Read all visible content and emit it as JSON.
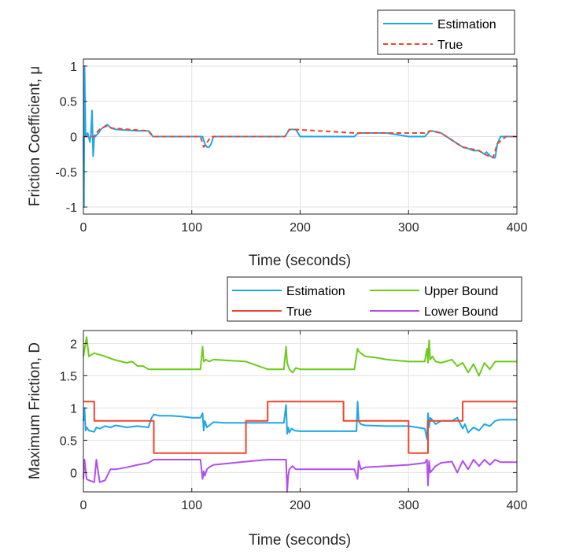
{
  "colors": {
    "estimation": "#1ea6ec",
    "true": "#f0452a",
    "upper": "#6ccb1a",
    "lower": "#b14ef0"
  },
  "chart_data": [
    {
      "type": "line",
      "xlabel": "Time (seconds)",
      "ylabel": "Friction Coefficient, μ",
      "xlim": [
        0,
        400
      ],
      "ylim": [
        -1.1,
        1.1
      ],
      "xticks": [
        "0",
        "100",
        "200",
        "300",
        "400"
      ],
      "yticks": [
        "1",
        "0.5",
        "0",
        "-0.5",
        "-1"
      ],
      "legend": {
        "position": "top-right",
        "entries": [
          "Estimation",
          "True"
        ]
      },
      "grid": true,
      "series": [
        {
          "name": "Estimation",
          "style": "solid",
          "x": [
            0,
            0.5,
            1,
            2,
            4,
            6,
            7,
            8,
            9,
            10,
            10.5,
            11,
            12,
            14,
            16,
            20,
            22,
            24,
            26,
            30,
            40,
            50,
            60,
            62,
            64,
            66,
            70,
            80,
            100,
            110,
            112,
            114,
            116,
            118,
            120,
            140,
            160,
            180,
            186,
            188,
            190,
            192,
            196,
            200,
            220,
            240,
            250,
            252,
            254,
            260,
            280,
            300,
            310,
            315,
            318,
            320,
            325,
            330,
            335,
            340,
            345,
            350,
            355,
            360,
            365,
            370,
            372,
            375,
            378,
            380,
            382,
            385,
            390,
            400
          ],
          "values": [
            0,
            -1,
            1,
            0,
            0.05,
            -0.08,
            0.05,
            0.37,
            -0.28,
            0,
            0.02,
            0,
            0.02,
            0.05,
            0.1,
            0.15,
            0.17,
            0.14,
            0.12,
            0.1,
            0.09,
            0.08,
            0.08,
            0.05,
            0,
            0,
            0,
            0,
            0,
            0,
            -0.1,
            -0.15,
            -0.15,
            -0.1,
            0,
            0,
            0,
            0,
            0,
            0.05,
            0.1,
            0.1,
            0.1,
            0,
            0,
            0,
            0,
            0.03,
            0.05,
            0.05,
            0.05,
            0,
            0,
            0,
            0.05,
            0.08,
            0.07,
            0.05,
            0,
            -0.05,
            -0.1,
            -0.15,
            -0.17,
            -0.2,
            -0.2,
            -0.25,
            -0.22,
            -0.27,
            -0.3,
            -0.3,
            -0.1,
            0,
            0,
            0
          ]
        },
        {
          "name": "True",
          "style": "dashed",
          "x": [
            0,
            10,
            12,
            16,
            22,
            26,
            60,
            64,
            108,
            111,
            118,
            186,
            190,
            196,
            250,
            254,
            315,
            320,
            330,
            345,
            350,
            365,
            370,
            378,
            382,
            390,
            400
          ],
          "values": [
            0,
            0,
            0.05,
            0.12,
            0.15,
            0.12,
            0.08,
            0,
            0,
            -0.15,
            0,
            0,
            0.1,
            0.1,
            0.05,
            0.05,
            0.05,
            0.08,
            0.05,
            -0.1,
            -0.15,
            -0.2,
            -0.25,
            -0.3,
            -0.1,
            0,
            0
          ]
        }
      ]
    },
    {
      "type": "line",
      "xlabel": "Time (seconds)",
      "ylabel": "Maximum Friction, D",
      "xlim": [
        0,
        400
      ],
      "ylim": [
        -0.3,
        2.2
      ],
      "xticks": [
        "0",
        "100",
        "200",
        "300",
        "400"
      ],
      "yticks": [
        "2",
        "1.5",
        "1",
        "0.5",
        "0"
      ],
      "legend": {
        "position": "top-right",
        "entries": [
          "Estimation",
          "True",
          "Upper Bound",
          "Lower Bound"
        ]
      },
      "grid": true,
      "series": [
        {
          "name": "Estimation",
          "x": [
            0,
            1,
            2,
            3,
            5,
            10,
            12,
            15,
            20,
            25,
            30,
            40,
            50,
            60,
            63,
            65,
            70,
            80,
            90,
            100,
            108,
            110,
            111,
            112,
            114,
            120,
            130,
            150,
            170,
            185,
            187,
            188,
            189,
            190,
            192,
            195,
            200,
            220,
            240,
            252,
            253,
            254,
            256,
            260,
            280,
            300,
            315,
            317,
            318,
            319,
            320,
            325,
            330,
            340,
            345,
            350,
            352,
            355,
            360,
            365,
            370,
            375,
            380,
            385,
            400
          ],
          "values": [
            0.8,
            1.0,
            0.65,
            0.7,
            0.65,
            0.63,
            0.7,
            0.68,
            0.72,
            0.7,
            0.73,
            0.7,
            0.72,
            0.7,
            0.85,
            0.9,
            0.88,
            0.88,
            0.87,
            0.85,
            0.85,
            0.92,
            0.65,
            0.8,
            0.7,
            0.78,
            0.77,
            0.77,
            0.77,
            0.77,
            1.05,
            0.6,
            0.7,
            0.62,
            0.68,
            0.65,
            0.64,
            0.64,
            0.64,
            0.64,
            1.1,
            0.8,
            0.75,
            0.73,
            0.72,
            0.72,
            0.68,
            0.52,
            0.92,
            0.7,
            0.85,
            0.75,
            0.8,
            0.8,
            0.85,
            0.68,
            0.75,
            0.62,
            0.7,
            0.65,
            0.75,
            0.72,
            0.8,
            0.82,
            0.82
          ]
        },
        {
          "name": "True",
          "x": [
            0,
            10,
            10,
            65,
            65,
            150,
            150,
            170,
            170,
            240,
            240,
            300,
            300,
            318,
            318,
            350,
            350,
            400
          ],
          "values": [
            1.1,
            1.1,
            0.8,
            0.8,
            0.3,
            0.3,
            0.8,
            0.8,
            1.1,
            1.1,
            0.8,
            0.8,
            0.3,
            0.3,
            0.8,
            0.8,
            1.1,
            1.1
          ]
        },
        {
          "name": "Upper Bound",
          "x": [
            0,
            3,
            5,
            10,
            20,
            28,
            35,
            40,
            45,
            50,
            55,
            60,
            65,
            80,
            100,
            108,
            110,
            111,
            113,
            116,
            120,
            150,
            170,
            185,
            187,
            188,
            190,
            193,
            196,
            200,
            240,
            250,
            253,
            254,
            256,
            260,
            270,
            280,
            300,
            315,
            317,
            318,
            319,
            320,
            322,
            325,
            330,
            340,
            345,
            350,
            355,
            360,
            365,
            370,
            375,
            380,
            400
          ],
          "values": [
            1.8,
            2.1,
            1.8,
            1.85,
            1.8,
            1.75,
            1.72,
            1.7,
            1.72,
            1.65,
            1.65,
            1.6,
            1.6,
            1.6,
            1.6,
            1.6,
            1.95,
            1.72,
            1.75,
            1.72,
            1.75,
            1.72,
            1.6,
            1.6,
            1.95,
            1.7,
            1.6,
            1.55,
            1.62,
            1.6,
            1.6,
            1.6,
            1.92,
            1.88,
            1.85,
            1.8,
            1.78,
            1.75,
            1.72,
            1.72,
            1.92,
            1.7,
            2.05,
            1.75,
            1.8,
            1.72,
            1.7,
            1.75,
            1.65,
            1.7,
            1.55,
            1.68,
            1.5,
            1.7,
            1.6,
            1.72,
            1.72
          ]
        },
        {
          "name": "Lower Bound",
          "x": [
            0,
            1,
            3,
            5,
            10,
            12,
            15,
            20,
            22,
            25,
            30,
            40,
            50,
            60,
            65,
            80,
            100,
            108,
            110,
            111,
            112,
            114,
            116,
            120,
            150,
            170,
            185,
            187,
            188,
            189,
            190,
            193,
            196,
            200,
            240,
            250,
            253,
            254,
            256,
            260,
            280,
            300,
            315,
            317,
            318,
            319,
            320,
            325,
            330,
            340,
            345,
            350,
            355,
            360,
            365,
            370,
            375,
            380,
            385,
            400
          ],
          "values": [
            -0.1,
            0.2,
            -0.1,
            -0.12,
            -0.15,
            0.2,
            -0.15,
            -0.12,
            -0.05,
            0.05,
            0.05,
            0.08,
            0.12,
            0.15,
            0.2,
            0.2,
            0.2,
            0.2,
            -0.1,
            0.02,
            -0.05,
            0.05,
            0.08,
            0.12,
            0.17,
            0.2,
            0.2,
            0.2,
            -0.3,
            -0.05,
            0.05,
            0.1,
            0.05,
            0.05,
            0.05,
            0.05,
            -0.1,
            0.18,
            0.05,
            0.08,
            0.1,
            0.12,
            0.15,
            0.2,
            -0.2,
            0.18,
            0.0,
            0.1,
            0.15,
            0.17,
            0.0,
            0.18,
            0.05,
            0.2,
            0.1,
            0.2,
            0.12,
            0.2,
            0.16,
            0.16
          ]
        }
      ]
    }
  ]
}
